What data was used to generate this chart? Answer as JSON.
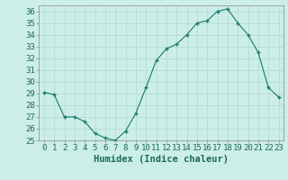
{
  "x": [
    0,
    1,
    2,
    3,
    4,
    5,
    6,
    7,
    8,
    9,
    10,
    11,
    12,
    13,
    14,
    15,
    16,
    17,
    18,
    19,
    20,
    21,
    22,
    23
  ],
  "y": [
    29.1,
    28.9,
    27.0,
    27.0,
    26.6,
    25.6,
    25.2,
    25.0,
    25.8,
    27.3,
    29.5,
    31.8,
    32.8,
    33.2,
    34.0,
    35.0,
    35.2,
    36.0,
    36.2,
    35.0,
    34.0,
    32.5,
    29.5,
    28.7
  ],
  "line_color": "#1a7a6a",
  "bg_color": "#cceee8",
  "grid_color": "#b0d8d0",
  "xlabel": "Humidex (Indice chaleur)",
  "xlabel_fontsize": 7.5,
  "tick_fontsize": 6.5,
  "ylim": [
    25,
    36.5
  ],
  "xlim": [
    -0.5,
    23.5
  ],
  "yticks": [
    25,
    26,
    27,
    28,
    29,
    30,
    31,
    32,
    33,
    34,
    35,
    36
  ],
  "xticks": [
    0,
    1,
    2,
    3,
    4,
    5,
    6,
    7,
    8,
    9,
    10,
    11,
    12,
    13,
    14,
    15,
    16,
    17,
    18,
    19,
    20,
    21,
    22,
    23
  ],
  "marker": "+"
}
